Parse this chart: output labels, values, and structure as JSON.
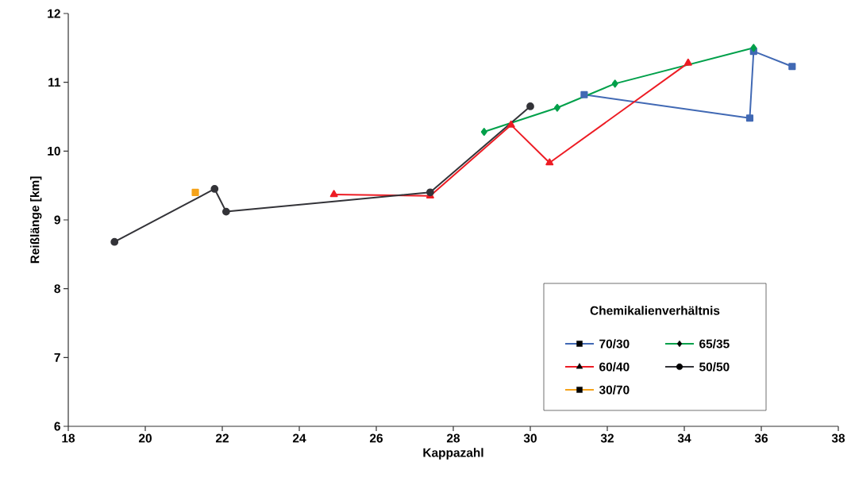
{
  "chart_data": {
    "type": "line",
    "xlabel": "Kappazahl",
    "ylabel": "Reißlänge [km]",
    "legend_title": "Chemikalienverhältnis",
    "legend": "bottom right",
    "grid": false,
    "line_style": "solid",
    "xlim": [
      18,
      38
    ],
    "xticks": [
      18,
      20,
      22,
      24,
      26,
      28,
      30,
      32,
      34,
      36,
      38
    ],
    "ylim": [
      6,
      12
    ],
    "yticks": [
      6,
      7,
      8,
      9,
      10,
      11,
      12
    ],
    "series": [
      {
        "name": "70/30",
        "color": "#4169b4",
        "marker": "square",
        "x": [
          31.4,
          35.7,
          35.8,
          36.8
        ],
        "values": [
          10.82,
          10.48,
          11.45,
          11.23
        ]
      },
      {
        "name": "65/35",
        "color": "#00a04a",
        "marker": "diamond",
        "x": [
          28.8,
          30.7,
          32.2,
          35.8
        ],
        "values": [
          10.28,
          10.63,
          10.98,
          11.5
        ]
      },
      {
        "name": "60/40",
        "color": "#ed1c24",
        "marker": "triangle",
        "x": [
          24.9,
          27.4,
          29.5,
          30.5,
          34.1
        ],
        "values": [
          9.37,
          9.35,
          10.38,
          9.83,
          11.28
        ]
      },
      {
        "name": "50/50",
        "color": "#333338",
        "marker": "circle",
        "x": [
          19.2,
          21.8,
          22.1,
          27.4,
          30.0
        ],
        "values": [
          8.68,
          9.45,
          9.12,
          9.4,
          10.65
        ]
      },
      {
        "name": "30/70",
        "color": "#f5a31a",
        "marker": "square",
        "x": [
          21.3
        ],
        "values": [
          9.4
        ]
      }
    ]
  }
}
